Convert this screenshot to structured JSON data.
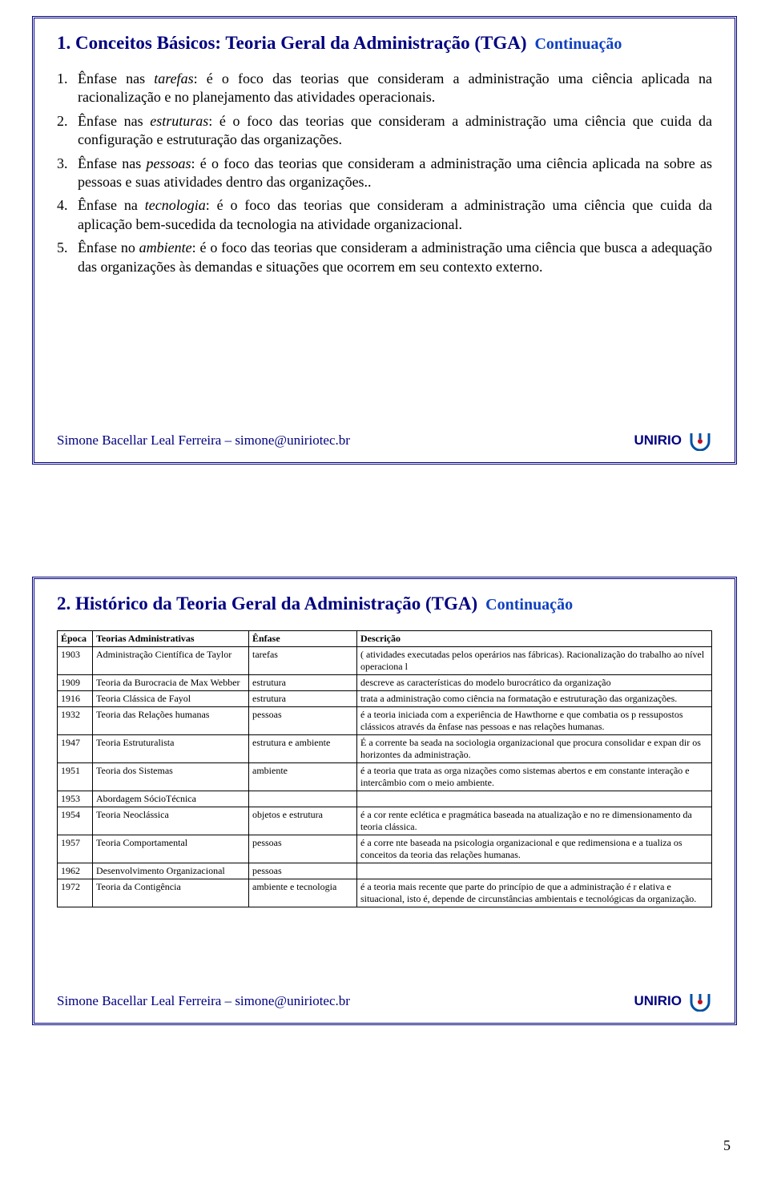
{
  "colors": {
    "frame": "#000080",
    "title": "#000080",
    "continuation": "#1040c0",
    "footer": "#000080",
    "logo_blue": "#0050a0",
    "logo_red": "#c01020"
  },
  "page_number": "5",
  "slide1": {
    "title": "1. Conceitos Básicos: Teoria Geral da Administração (TGA)",
    "continuation": "Continuação",
    "items": [
      {
        "num": "1.",
        "lead": "Ênfase nas ",
        "em": "tarefas",
        "rest": ": é o foco das teorias que consideram a administração uma ciência aplicada na racionalização e no planejamento das atividades operacionais."
      },
      {
        "num": "2.",
        "lead": "Ênfase nas ",
        "em": "estruturas",
        "rest": ": é o foco das teorias que consideram a administração uma ciência que cuida da configuração e estruturação das organizações."
      },
      {
        "num": "3.",
        "lead": "Ênfase nas ",
        "em": "pessoas",
        "rest": ": é o foco das teorias que consideram a administração uma ciência aplicada na  sobre as pessoas e suas atividades dentro das organizações.."
      },
      {
        "num": "4.",
        "lead": "Ênfase na ",
        "em": "tecnologia",
        "rest": ": é o foco das teorias que consideram a administração uma ciência que cuida da aplicação bem-sucedida da tecnologia na atividade organizacional."
      },
      {
        "num": "5.",
        "lead": "Ênfase no ",
        "em": "ambiente",
        "rest": ": é o foco das teorias que consideram a administração uma ciência que busca a adequação das organizações às demandas e situações que ocorrem em seu contexto externo."
      }
    ]
  },
  "slide2": {
    "title": "2. Histórico da Teoria Geral da Administração (TGA)",
    "continuation": "Continuação",
    "headers": [
      "Época",
      "Teorias Administrativas",
      "Ênfase",
      "Descrição"
    ],
    "rows": [
      [
        "1903",
        "Administração Científica de Taylor",
        "tarefas",
        "( atividades executadas pelos operários nas fábricas). Racionalização do trabalho ao nível operaciona l"
      ],
      [
        "1909",
        "Teoria da Burocracia de Max Webber",
        "estrutura",
        "descreve as características do modelo burocrático da organização"
      ],
      [
        "1916",
        "Teoria Clássica de Fayol",
        "estrutura",
        "trata a administração como ciência na formatação e estruturação das organizações."
      ],
      [
        "1932",
        "Teoria das Relações humanas",
        "pessoas",
        "é a teoria iniciada com a experiência de Hawthorne e que combatia os p ressupostos clássicos através da ênfase nas pessoas e nas relações humanas."
      ],
      [
        "1947",
        "Teoria Estruturalista",
        "estrutura e ambiente",
        "É a corrente ba seada na sociologia organizacional que procura consolidar e expan dir os horizontes da administração."
      ],
      [
        "1951",
        "Teoria dos Sistemas",
        "ambiente",
        "é a teoria que trata as orga nizações como sistemas abertos e em constante interação e intercâmbio com o meio ambiente."
      ],
      [
        "1953",
        "Abordagem SócioTécnica",
        "",
        ""
      ],
      [
        "1954",
        "Teoria Neoclássica",
        "objetos e estrutura",
        "é a cor rente eclética e pragmática baseada na atualização e no re dimensionamento da teoria clássica."
      ],
      [
        "1957",
        "Teoria Comportamental",
        "pessoas",
        "é a corre nte baseada na psicologia organizacional e que redimensiona e a tualiza os conceitos da teoria das relações humanas."
      ],
      [
        "1962",
        "Desenvolvimento Organizacional",
        "pessoas",
        ""
      ],
      [
        "1972",
        "Teoria da Contigência",
        "ambiente e tecnologia",
        "é a teoria mais recente que parte do princípio de que a administração é r elativa e situacional, isto é, depende de circunstâncias ambientais e tecnológicas da organização."
      ]
    ]
  },
  "footer": {
    "left": "Simone Bacellar Leal Ferreira – simone@uniriotec.br",
    "right": "UNIRIO"
  }
}
